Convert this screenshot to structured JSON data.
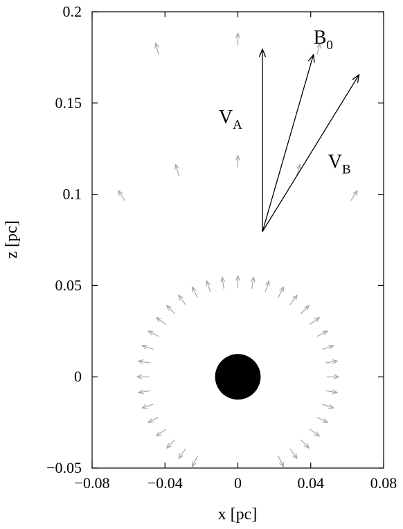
{
  "chart_data": {
    "type": "scatter",
    "title": "",
    "xlabel": "x [pc]",
    "ylabel": "z [pc]",
    "xlim": [
      -0.08,
      0.08
    ],
    "ylim": [
      -0.05,
      0.2
    ],
    "x_ticks": [
      -0.08,
      -0.04,
      0,
      0.04,
      0.08
    ],
    "x_tick_labels": [
      "−0.08",
      "−0.04",
      "0",
      "0.04",
      "0.08"
    ],
    "y_ticks": [
      -0.05,
      0,
      0.05,
      0.1,
      0.15,
      0.2
    ],
    "y_tick_labels": [
      "−0.05",
      "0",
      "0.05",
      "0.1",
      "0.15",
      "0.2"
    ],
    "grid": false,
    "legend": "none",
    "central_body": {
      "x": 0,
      "z": 0,
      "radius": 0.0125,
      "color": "#000000"
    },
    "vector_field": {
      "color": "#a6a6a6",
      "center": [
        0,
        0
      ],
      "arrow_length": 0.0065,
      "rings": [
        {
          "radius": 0.052,
          "count": 40
        },
        {
          "radius": 0.118,
          "count": 22
        },
        {
          "radius": 0.185,
          "count": 26
        }
      ]
    },
    "vectors": [
      {
        "name": "V",
        "subscript": "A",
        "from": [
          0.0135,
          0.0795
        ],
        "to": [
          0.0135,
          0.1795
        ],
        "label_at": [
          -0.0105,
          0.139
        ]
      },
      {
        "name": "B",
        "subscript": "0",
        "from": [
          0.0135,
          0.0795
        ],
        "to": [
          0.0415,
          0.1765
        ],
        "label_at": [
          0.0415,
          0.1825
        ]
      },
      {
        "name": "V",
        "subscript": "B",
        "from": [
          0.0135,
          0.0795
        ],
        "to": [
          0.0665,
          0.1655
        ],
        "label_at": [
          0.0495,
          0.1145
        ]
      }
    ]
  }
}
